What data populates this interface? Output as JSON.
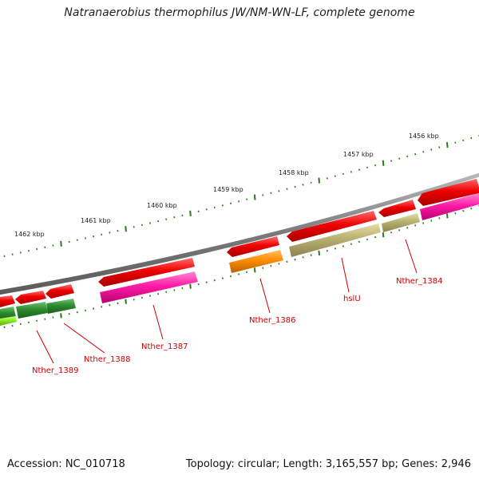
{
  "title": "Natranaerobius thermophilus JW/NM-WN-LF, complete genome",
  "accession": "Accession: NC_010718",
  "summary": "Topology: circular; Length: 3,165,557 bp; Genes: 2,946",
  "ticks": [
    "1456 kbp",
    "1457 kbp",
    "1458 kbp",
    "1459 kbp",
    "1460 kbp",
    "1461 kbp",
    "1462 kbp"
  ],
  "gene_labels": [
    "Nther_1384",
    "hslU",
    "Nther_1386",
    "Nther_1387",
    "Nther_1388",
    "Nther_1389"
  ],
  "colors": {
    "cds": "#ee0000",
    "pink": "#ff1aa8",
    "olive": "#b8b070",
    "orange": "#ff8c00",
    "green": "#2e8b2e",
    "lime": "#88ee22",
    "backbone": "#888888",
    "tick": "#2a7a1a",
    "label": "#cc0000"
  }
}
